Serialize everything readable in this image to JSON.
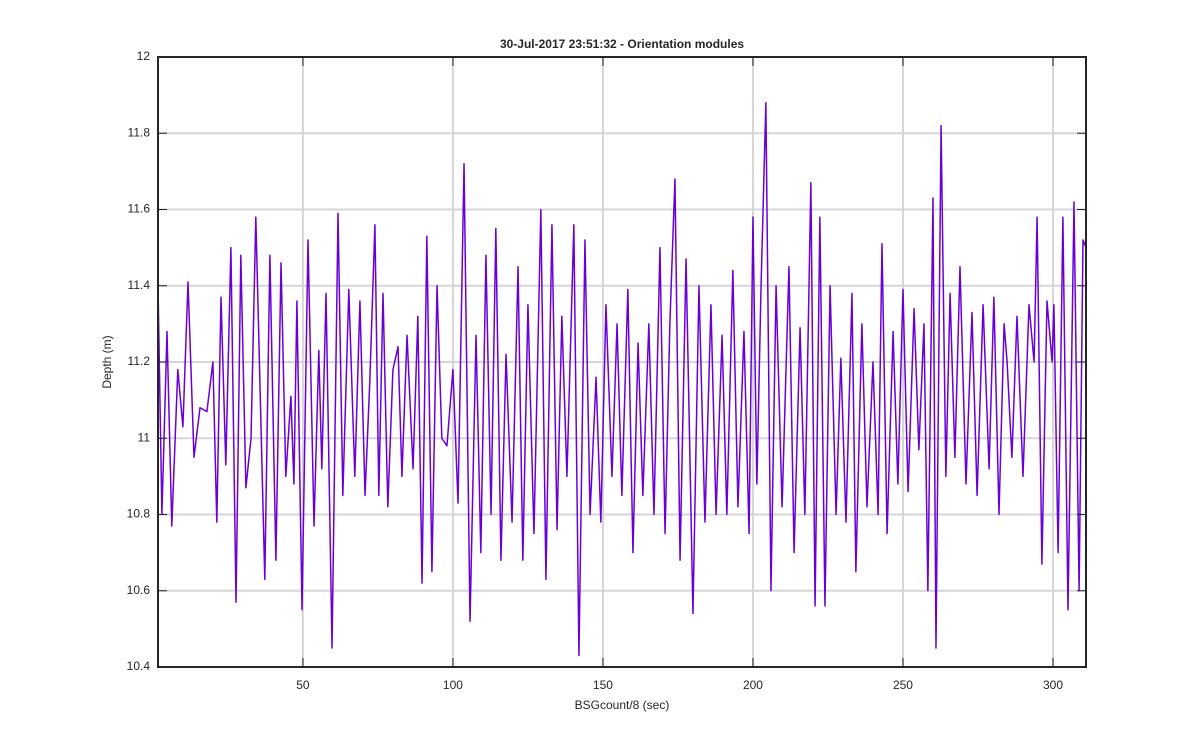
{
  "chart_data": {
    "type": "line",
    "title": "30-Jul-2017 23:51:32 - Orientation modules",
    "x_label": "BSGcount/8 (sec)",
    "y_label": "Depth (m)",
    "x": [
      1.7,
      3,
      4.7,
      6.3,
      8.3,
      10,
      11.7,
      13.7,
      15.7,
      18,
      20,
      21.3,
      22.7,
      24.3,
      26,
      27.7,
      29.3,
      31,
      32.7,
      34.3,
      37.3,
      39,
      41,
      42.7,
      44.3,
      46,
      47,
      48,
      49.7,
      51.7,
      53.7,
      55.3,
      56.3,
      57.7,
      59.7,
      61.7,
      63.3,
      65.3,
      67.3,
      69,
      70.7,
      72.3,
      74,
      75.3,
      76.7,
      78.3,
      80,
      81.7,
      83,
      84.7,
      86.7,
      88.3,
      89.7,
      91.3,
      93,
      94.7,
      96.3,
      98,
      100,
      101.7,
      103.7,
      105.7,
      107.7,
      109.3,
      111,
      112.7,
      114.3,
      116,
      117.7,
      119.7,
      121.7,
      123.3,
      125,
      127,
      129.3,
      131,
      133,
      134.7,
      136.3,
      138,
      140.3,
      142,
      144,
      145.7,
      147.7,
      149.3,
      151,
      153,
      154.7,
      156.3,
      158.3,
      160,
      161.7,
      163.3,
      165.3,
      167,
      169,
      170.7,
      172.3,
      174,
      175.7,
      177.7,
      180,
      182,
      184,
      186,
      187.7,
      189.7,
      191.3,
      193.3,
      195,
      197,
      198.7,
      200,
      201.3,
      202.7,
      204.3,
      206,
      207.7,
      209.7,
      212,
      213.7,
      215.7,
      217.3,
      219.3,
      220.7,
      222.3,
      224,
      225.7,
      227.7,
      229.3,
      231,
      233,
      234.3,
      236.3,
      238,
      240,
      241.7,
      243,
      244.7,
      246.7,
      248.3,
      250,
      251.7,
      253.7,
      255.3,
      257,
      258.3,
      260,
      261,
      262.7,
      264.3,
      265.7,
      267.3,
      269,
      271,
      273,
      274.7,
      276.7,
      278.7,
      280.3,
      282,
      283.7,
      284.7,
      286.3,
      288,
      290,
      292,
      293.7,
      294.7,
      296.3,
      298,
      299.7,
      300.3,
      301.7,
      303.3,
      305,
      307,
      308.7,
      310,
      311
    ],
    "series": [
      {
        "color": "#6a00d8",
        "values": [
          11.4,
          10.8,
          11.28,
          10.77,
          11.18,
          11.03,
          11.41,
          10.95,
          11.08,
          11.07,
          11.2,
          10.78,
          11.37,
          10.93,
          11.5,
          10.57,
          11.48,
          10.87,
          11.0,
          11.58,
          10.63,
          11.48,
          10.68,
          11.46,
          10.9,
          11.11,
          10.88,
          11.36,
          10.55,
          11.52,
          10.77,
          11.23,
          10.92,
          11.38,
          10.45,
          11.59,
          10.85,
          11.39,
          10.9,
          11.36,
          10.85,
          11.15,
          11.56,
          10.85,
          11.38,
          10.82,
          11.18,
          11.24,
          10.9,
          11.27,
          10.92,
          11.32,
          10.62,
          11.53,
          10.65,
          11.4,
          11.0,
          10.98,
          11.18,
          10.83,
          11.72,
          10.52,
          11.27,
          10.7,
          11.48,
          10.8,
          11.55,
          10.68,
          11.22,
          10.78,
          11.45,
          10.68,
          11.35,
          10.75,
          11.6,
          10.63,
          11.56,
          10.76,
          11.32,
          10.9,
          11.56,
          10.43,
          11.52,
          10.8,
          11.16,
          10.78,
          11.35,
          10.9,
          11.3,
          10.85,
          11.39,
          10.7,
          11.25,
          10.85,
          11.3,
          10.8,
          11.5,
          10.75,
          11.3,
          11.68,
          10.68,
          11.47,
          10.54,
          11.4,
          10.78,
          11.35,
          10.8,
          11.27,
          10.8,
          11.44,
          10.82,
          11.28,
          10.75,
          11.58,
          10.88,
          11.4,
          11.88,
          10.6,
          11.4,
          10.82,
          11.45,
          10.7,
          11.29,
          10.8,
          11.67,
          10.56,
          11.58,
          10.56,
          11.4,
          10.8,
          11.21,
          10.78,
          11.38,
          10.65,
          11.3,
          10.82,
          11.2,
          10.8,
          11.51,
          10.75,
          11.28,
          10.88,
          11.39,
          10.86,
          11.34,
          10.97,
          11.3,
          10.6,
          11.63,
          10.45,
          11.82,
          10.9,
          11.38,
          10.95,
          11.45,
          10.88,
          11.33,
          10.85,
          11.35,
          10.92,
          11.37,
          10.8,
          11.3,
          11.2,
          10.95,
          11.32,
          10.9,
          11.35,
          11.2,
          11.58,
          10.67,
          11.36,
          11.2,
          11.35,
          10.7,
          11.58,
          10.55,
          11.62,
          10.6,
          11.52,
          11.5
        ]
      }
    ],
    "xlim": [
      1.7,
      311
    ],
    "xticks": [
      50,
      100,
      150,
      200,
      250,
      300
    ],
    "ylim": [
      10.4,
      12
    ],
    "yticks": [
      10.4,
      10.6,
      10.8,
      11,
      11.2,
      11.4,
      11.6,
      11.8,
      12
    ],
    "grid": true
  }
}
